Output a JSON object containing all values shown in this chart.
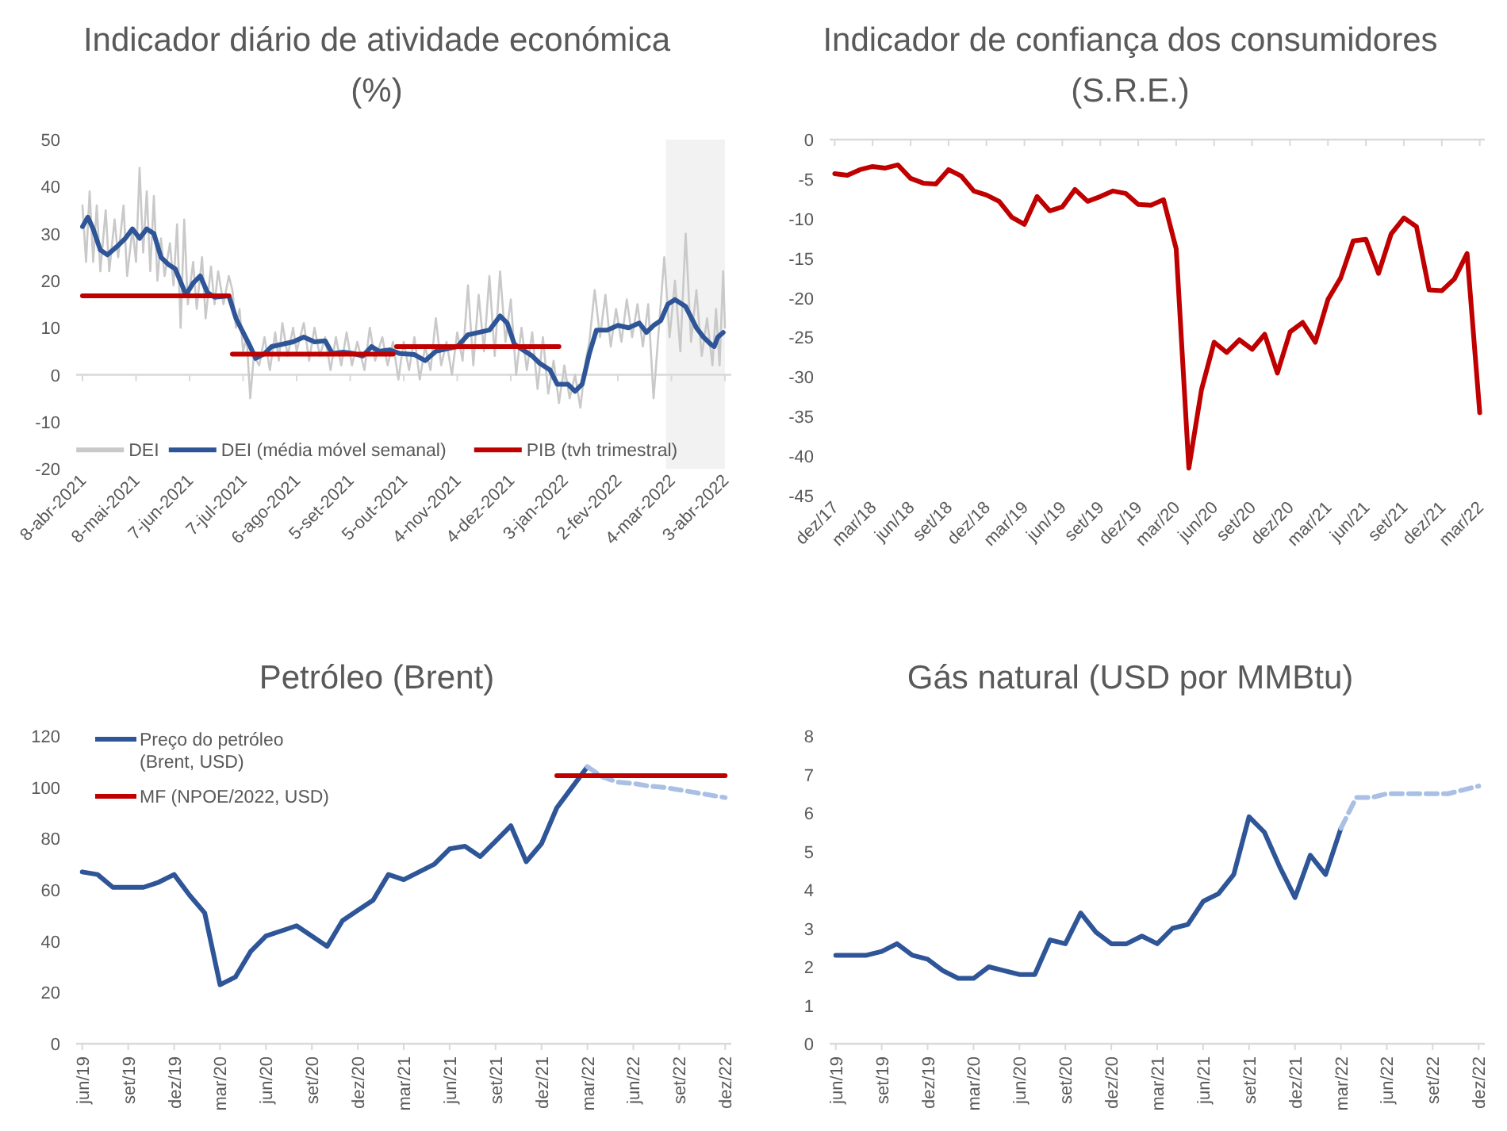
{
  "chart_data": [
    {
      "type": "line",
      "title": "Indicador diário de atividade económica",
      "subtitle": "(%)",
      "xlim": [
        "2021-04-08",
        "2022-04-03"
      ],
      "xticks": [
        {
          "value": "2021-04-08",
          "label": "8-abr-2021"
        },
        {
          "value": "2021-05-08",
          "label": "8-mai-2021"
        },
        {
          "value": "2021-06-07",
          "label": "7-jun-2021"
        },
        {
          "value": "2021-07-07",
          "label": "7-jul-2021"
        },
        {
          "value": "2021-08-06",
          "label": "6-ago-2021"
        },
        {
          "value": "2021-09-05",
          "label": "5-set-2021"
        },
        {
          "value": "2021-10-05",
          "label": "5-out-2021"
        },
        {
          "value": "2021-11-04",
          "label": "4-nov-2021"
        },
        {
          "value": "2021-12-04",
          "label": "4-dez-2021"
        },
        {
          "value": "2022-01-03",
          "label": "3-jan-2022"
        },
        {
          "value": "2022-02-02",
          "label": "2-fev-2022"
        },
        {
          "value": "2022-03-04",
          "label": "4-mar-2022"
        },
        {
          "value": "2022-04-03",
          "label": "3-abr-2022"
        }
      ],
      "ylim": [
        -20,
        50
      ],
      "yticks": [
        -20,
        -10,
        0,
        10,
        20,
        30,
        40,
        50
      ],
      "legend": "bottom",
      "bands": [
        {
          "axis": "x",
          "from": "2022-03-01",
          "to": "2022-04-03",
          "color": "#f2f2f2"
        }
      ],
      "series": [
        {
          "name": "DEI",
          "color": "#c9c9c9",
          "x": [
            "2021-04-08",
            "2021-04-10",
            "2021-04-12",
            "2021-04-14",
            "2021-04-16",
            "2021-04-18",
            "2021-04-21",
            "2021-04-23",
            "2021-04-26",
            "2021-04-28",
            "2021-05-01",
            "2021-05-03",
            "2021-05-06",
            "2021-05-08",
            "2021-05-10",
            "2021-05-12",
            "2021-05-14",
            "2021-05-16",
            "2021-05-18",
            "2021-05-20",
            "2021-05-22",
            "2021-05-24",
            "2021-05-27",
            "2021-05-29",
            "2021-05-31",
            "2021-06-02",
            "2021-06-04",
            "2021-06-06",
            "2021-06-09",
            "2021-06-11",
            "2021-06-14",
            "2021-06-16",
            "2021-06-19",
            "2021-06-21",
            "2021-06-23",
            "2021-06-26",
            "2021-06-29",
            "2021-07-01",
            "2021-07-03",
            "2021-07-05",
            "2021-07-07",
            "2021-07-09",
            "2021-07-11",
            "2021-07-13",
            "2021-07-16",
            "2021-07-19",
            "2021-07-22",
            "2021-07-25",
            "2021-07-27",
            "2021-07-29",
            "2021-08-01",
            "2021-08-04",
            "2021-08-06",
            "2021-08-10",
            "2021-08-13",
            "2021-08-16",
            "2021-08-19",
            "2021-08-22",
            "2021-08-25",
            "2021-08-28",
            "2021-08-31",
            "2021-09-03",
            "2021-09-06",
            "2021-09-09",
            "2021-09-13",
            "2021-09-16",
            "2021-09-19",
            "2021-09-23",
            "2021-09-26",
            "2021-09-29",
            "2021-10-02",
            "2021-10-05",
            "2021-10-08",
            "2021-10-11",
            "2021-10-14",
            "2021-10-17",
            "2021-10-20",
            "2021-10-23",
            "2021-10-26",
            "2021-10-29",
            "2021-11-01",
            "2021-11-04",
            "2021-11-07",
            "2021-11-10",
            "2021-11-13",
            "2021-11-16",
            "2021-11-19",
            "2021-11-22",
            "2021-11-25",
            "2021-11-28",
            "2021-12-01",
            "2021-12-04",
            "2021-12-07",
            "2021-12-10",
            "2021-12-13",
            "2021-12-16",
            "2021-12-19",
            "2021-12-22",
            "2021-12-25",
            "2021-12-28",
            "2021-12-31",
            "2022-01-03",
            "2022-01-06",
            "2022-01-09",
            "2022-01-12",
            "2022-01-15",
            "2022-01-17",
            "2022-01-20",
            "2022-01-23",
            "2022-01-26",
            "2022-01-29",
            "2022-02-01",
            "2022-02-04",
            "2022-02-07",
            "2022-02-10",
            "2022-02-13",
            "2022-02-16",
            "2022-02-19",
            "2022-02-22",
            "2022-02-25",
            "2022-02-28",
            "2022-03-03",
            "2022-03-06",
            "2022-03-09",
            "2022-03-12",
            "2022-03-15",
            "2022-03-18",
            "2022-03-21",
            "2022-03-24",
            "2022-03-27",
            "2022-03-29",
            "2022-03-31",
            "2022-04-02",
            "2022-04-03"
          ],
          "values": [
            36,
            24,
            39,
            24,
            36,
            22,
            35,
            22,
            33,
            25,
            36,
            21,
            31,
            24,
            44,
            26,
            39,
            22,
            38,
            20,
            29,
            21,
            28,
            19,
            32,
            10,
            33,
            15,
            24,
            14,
            25,
            12,
            23,
            15,
            22,
            15,
            21,
            18,
            10,
            14,
            5,
            8,
            -5,
            4,
            2,
            8,
            1,
            9,
            3,
            11,
            4,
            10,
            5,
            11,
            3,
            10,
            4,
            8,
            1,
            8,
            2,
            9,
            2,
            7,
            1,
            10,
            3,
            8,
            2,
            7,
            -1,
            7,
            1,
            8,
            -1,
            6,
            1,
            12,
            2,
            7,
            0,
            9,
            3,
            19,
            2,
            17,
            5,
            21,
            4,
            22,
            7,
            16,
            0,
            10,
            1,
            9,
            -3,
            8,
            -4,
            3,
            -6,
            2,
            -5,
            0,
            -7,
            3,
            7,
            18,
            8,
            17,
            6,
            14,
            7,
            16,
            8,
            15,
            6,
            15,
            -5,
            10,
            25,
            8,
            20,
            5,
            30,
            7,
            18,
            4,
            12,
            2,
            14,
            2,
            22,
            10
          ]
        },
        {
          "name": "DEI (média móvel semanal)",
          "color": "#2e5597",
          "x": [
            "2021-04-08",
            "2021-04-11",
            "2021-04-14",
            "2021-04-18",
            "2021-04-22",
            "2021-04-28",
            "2021-05-02",
            "2021-05-06",
            "2021-05-10",
            "2021-05-14",
            "2021-05-18",
            "2021-05-22",
            "2021-05-26",
            "2021-05-30",
            "2021-06-05",
            "2021-06-09",
            "2021-06-13",
            "2021-06-17",
            "2021-06-21",
            "2021-06-29",
            "2021-07-03",
            "2021-07-07",
            "2021-07-11",
            "2021-07-14",
            "2021-07-19",
            "2021-07-23",
            "2021-07-29",
            "2021-08-04",
            "2021-08-10",
            "2021-08-16",
            "2021-08-22",
            "2021-08-26",
            "2021-09-01",
            "2021-09-07",
            "2021-09-12",
            "2021-09-17",
            "2021-09-21",
            "2021-09-27",
            "2021-10-03",
            "2021-10-11",
            "2021-10-17",
            "2021-10-23",
            "2021-10-29",
            "2021-11-04",
            "2021-11-10",
            "2021-11-16",
            "2021-11-22",
            "2021-11-28",
            "2021-12-02",
            "2021-12-06",
            "2021-12-12",
            "2021-12-16",
            "2021-12-20",
            "2021-12-26",
            "2021-12-30",
            "2022-01-05",
            "2022-01-09",
            "2022-01-13",
            "2022-01-17",
            "2022-01-21",
            "2022-01-27",
            "2022-02-02",
            "2022-02-08",
            "2022-02-14",
            "2022-02-18",
            "2022-02-22",
            "2022-02-26",
            "2022-03-02",
            "2022-03-06",
            "2022-03-12",
            "2022-03-18",
            "2022-03-22",
            "2022-03-26",
            "2022-03-28",
            "2022-03-30",
            "2022-04-02"
          ],
          "values": [
            31.5,
            33.5,
            31,
            26.5,
            25.5,
            27.5,
            29,
            31,
            29,
            31,
            30,
            25,
            23.5,
            22.5,
            17,
            19.5,
            21,
            17.5,
            16.5,
            16.8,
            12,
            9,
            6,
            3.5,
            4.5,
            6,
            6.5,
            7,
            8,
            7,
            7.2,
            4.5,
            4.8,
            4.5,
            4,
            6,
            5,
            5.3,
            4.5,
            4.3,
            3,
            5,
            5.5,
            6,
            8.5,
            9,
            9.5,
            12.5,
            11,
            6.5,
            5,
            4,
            2.5,
            1,
            -2,
            -2,
            -3.5,
            -2,
            4.5,
            9.5,
            9.5,
            10.5,
            10,
            11,
            9,
            10.5,
            11.5,
            15,
            16,
            14.5,
            10,
            8,
            6.5,
            6,
            8,
            9
          ]
        },
        {
          "name": "PIB (tvh trimestral)",
          "color": "#c00000",
          "x": [
            "2021-04-08",
            "2021-06-29",
            "2021-06-30",
            "2021-07-01",
            "2021-09-29",
            "2021-09-30",
            "2021-10-01",
            "2021-12-31"
          ],
          "values": [
            16.8,
            16.8,
            null,
            4.4,
            4.4,
            null,
            6,
            6
          ]
        }
      ]
    },
    {
      "type": "line",
      "title": "Indicador de confiança dos consumidores",
      "subtitle": "(S.R.E.)",
      "categories": [
        "dez/17",
        null,
        null,
        "mar/18",
        null,
        null,
        "jun/18",
        null,
        null,
        "set/18",
        null,
        null,
        "dez/18",
        null,
        null,
        "mar/19",
        null,
        null,
        "jun/19",
        null,
        null,
        "set/19",
        null,
        null,
        "dez/19",
        null,
        null,
        "mar/20",
        null,
        null,
        "jun/20",
        null,
        null,
        "set/20",
        null,
        null,
        "dez/20",
        null,
        null,
        "mar/21",
        null,
        null,
        "jun/21",
        null,
        null,
        "set/21",
        null,
        null,
        "dez/21",
        null,
        null,
        "mar/22"
      ],
      "ylim": [
        -45,
        0
      ],
      "yticks": [
        -45,
        -40,
        -35,
        -30,
        -25,
        -20,
        -15,
        -10,
        -5,
        0
      ],
      "series": [
        {
          "color": "#c00000",
          "values": [
            -4.3,
            -4.5,
            -3.8,
            -3.4,
            -3.6,
            -3.2,
            -4.9,
            -5.5,
            -5.6,
            -3.8,
            -4.6,
            -6.5,
            -7,
            -7.8,
            -9.8,
            -10.7,
            -7.2,
            -9,
            -8.5,
            -6.3,
            -7.8,
            -7.2,
            -6.5,
            -6.8,
            -8.2,
            -8.3,
            -7.6,
            -13.8,
            -41.5,
            -31.6,
            -25.6,
            -26.9,
            -25.3,
            -26.5,
            -24.6,
            -29.5,
            -24.3,
            -23.1,
            -25.6,
            -20.2,
            -17.5,
            -12.8,
            -12.6,
            -16.9,
            -11.9,
            -9.9,
            -11,
            -19,
            -19.1,
            -17.6,
            -14.4,
            -34.5
          ]
        }
      ]
    },
    {
      "type": "line",
      "title": "Petróleo (Brent)",
      "categories": [
        "jun/19",
        null,
        null,
        "set/19",
        null,
        null,
        "dez/19",
        null,
        null,
        "mar/20",
        null,
        null,
        "jun/20",
        null,
        null,
        "set/20",
        null,
        null,
        "dez/20",
        null,
        null,
        "mar/21",
        null,
        null,
        "jun/21",
        null,
        null,
        "set/21",
        null,
        null,
        "dez/21",
        null,
        null,
        "mar/22",
        null,
        null,
        "jun/22",
        null,
        null,
        "set/22",
        null,
        null,
        "dez/22"
      ],
      "ylim": [
        0,
        120
      ],
      "yticks": [
        0,
        20,
        40,
        60,
        80,
        100,
        120
      ],
      "legend": "top left",
      "series": [
        {
          "name": "Preço do petróleo (Brent, USD)",
          "color": "#2e5597",
          "values": [
            67,
            66,
            61,
            61,
            61,
            63,
            66,
            58,
            51,
            23,
            26,
            36,
            42,
            44,
            46,
            42,
            38,
            48,
            52,
            56,
            66,
            64,
            67,
            70,
            76,
            77,
            73,
            79,
            85,
            71,
            78,
            92,
            100,
            108,
            null,
            null,
            null,
            null,
            null,
            null,
            null,
            null,
            null
          ]
        },
        {
          "color": "#a9bfe3",
          "line_style": "dashed",
          "values": [
            null,
            null,
            null,
            null,
            null,
            null,
            null,
            null,
            null,
            null,
            null,
            null,
            null,
            null,
            null,
            null,
            null,
            null,
            null,
            null,
            null,
            null,
            null,
            null,
            null,
            null,
            null,
            null,
            null,
            null,
            null,
            null,
            null,
            108,
            104,
            102,
            101.5,
            100.5,
            100,
            99,
            98,
            97,
            96
          ]
        },
        {
          "name": "MF (NPOE/2022, USD)",
          "color": "#c00000",
          "values": [
            null,
            null,
            null,
            null,
            null,
            null,
            null,
            null,
            null,
            null,
            null,
            null,
            null,
            null,
            null,
            null,
            null,
            null,
            null,
            null,
            null,
            null,
            null,
            null,
            null,
            null,
            null,
            null,
            null,
            null,
            null,
            104.5,
            104.5,
            104.5,
            104.5,
            104.5,
            104.5,
            104.5,
            104.5,
            104.5,
            104.5,
            104.5,
            104.5
          ]
        }
      ]
    },
    {
      "type": "line",
      "title": "Gás natural (USD por MMBtu)",
      "categories": [
        "jun/19",
        null,
        null,
        "set/19",
        null,
        null,
        "dez/19",
        null,
        null,
        "mar/20",
        null,
        null,
        "jun/20",
        null,
        null,
        "set/20",
        null,
        null,
        "dez/20",
        null,
        null,
        "mar/21",
        null,
        null,
        "jun/21",
        null,
        null,
        "set/21",
        null,
        null,
        "dez/21",
        null,
        null,
        "mar/22",
        null,
        null,
        "jun/22",
        null,
        null,
        "set/22",
        null,
        null,
        "dez/22"
      ],
      "ylim": [
        0,
        8
      ],
      "yticks": [
        0,
        1,
        2,
        3,
        4,
        5,
        6,
        7,
        8
      ],
      "series": [
        {
          "color": "#2e5597",
          "values": [
            2.3,
            2.3,
            2.3,
            2.4,
            2.6,
            2.3,
            2.2,
            1.9,
            1.7,
            1.7,
            2,
            1.9,
            1.8,
            1.8,
            2.7,
            2.6,
            3.4,
            2.9,
            2.6,
            2.6,
            2.8,
            2.6,
            3,
            3.1,
            3.7,
            3.9,
            4.4,
            5.9,
            5.5,
            4.6,
            3.8,
            4.9,
            4.4,
            5.6,
            null,
            null,
            null,
            null,
            null,
            null,
            null,
            null,
            null
          ]
        },
        {
          "color": "#a9bfe3",
          "line_style": "dashed",
          "values": [
            null,
            null,
            null,
            null,
            null,
            null,
            null,
            null,
            null,
            null,
            null,
            null,
            null,
            null,
            null,
            null,
            null,
            null,
            null,
            null,
            null,
            null,
            null,
            null,
            null,
            null,
            null,
            null,
            null,
            null,
            null,
            null,
            null,
            5.6,
            6.4,
            6.4,
            6.5,
            6.5,
            6.5,
            6.5,
            6.5,
            6.6,
            6.7
          ]
        }
      ]
    }
  ]
}
